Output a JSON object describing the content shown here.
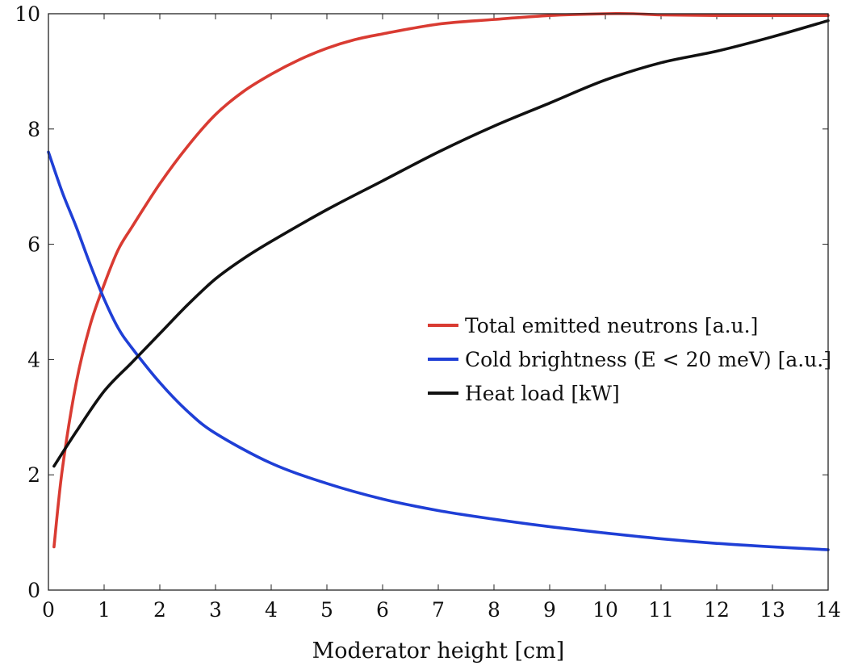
{
  "chart_data": {
    "type": "line",
    "title": "",
    "xlabel": "Moderator height [cm]",
    "ylabel": "",
    "xlim": [
      0,
      14
    ],
    "ylim": [
      0,
      10
    ],
    "xticks": [
      "0",
      "1",
      "2",
      "3",
      "4",
      "5",
      "6",
      "7",
      "8",
      "9",
      "10",
      "11",
      "12",
      "13",
      "14"
    ],
    "yticks": [
      "0",
      "2",
      "4",
      "6",
      "8",
      "10"
    ],
    "grid": false,
    "legend_position": "center-right",
    "series": [
      {
        "name": "Total emitted neutrons [a.u.]",
        "color": "#d93b32",
        "x": [
          0.1,
          0.25,
          0.5,
          0.75,
          1.0,
          1.25,
          1.5,
          2.0,
          2.5,
          3.0,
          3.5,
          4.0,
          4.5,
          5.0,
          5.5,
          6.0,
          7.0,
          8.0,
          9.0,
          10.0,
          10.5,
          11.0,
          12.0,
          13.0,
          14.0
        ],
        "y": [
          0.75,
          2.1,
          3.6,
          4.6,
          5.3,
          5.9,
          6.3,
          7.05,
          7.7,
          8.25,
          8.65,
          8.95,
          9.2,
          9.4,
          9.55,
          9.65,
          9.82,
          9.9,
          9.97,
          10.0,
          10.0,
          9.98,
          9.97,
          9.97,
          9.97
        ]
      },
      {
        "name": "Cold brightness (E < 20 meV) [a.u.]",
        "color": "#1f3fd6",
        "x": [
          0.0,
          0.25,
          0.5,
          0.75,
          1.0,
          1.25,
          1.5,
          2.0,
          2.5,
          3.0,
          4.0,
          5.0,
          6.0,
          7.0,
          8.0,
          9.0,
          10.0,
          11.0,
          12.0,
          13.0,
          14.0
        ],
        "y": [
          7.6,
          6.9,
          6.3,
          5.65,
          5.05,
          4.55,
          4.2,
          3.6,
          3.1,
          2.72,
          2.2,
          1.85,
          1.58,
          1.38,
          1.23,
          1.1,
          0.99,
          0.89,
          0.81,
          0.75,
          0.7
        ]
      },
      {
        "name": "Heat load [kW]",
        "color": "#111111",
        "x": [
          0.1,
          0.5,
          1.0,
          1.5,
          2.0,
          2.5,
          3.0,
          3.5,
          4.0,
          5.0,
          6.0,
          7.0,
          8.0,
          9.0,
          10.0,
          11.0,
          12.0,
          13.0,
          14.0
        ],
        "y": [
          2.15,
          2.75,
          3.45,
          3.95,
          4.45,
          4.95,
          5.4,
          5.75,
          6.05,
          6.6,
          7.1,
          7.6,
          8.05,
          8.45,
          8.85,
          9.15,
          9.35,
          9.6,
          9.88
        ]
      }
    ]
  }
}
